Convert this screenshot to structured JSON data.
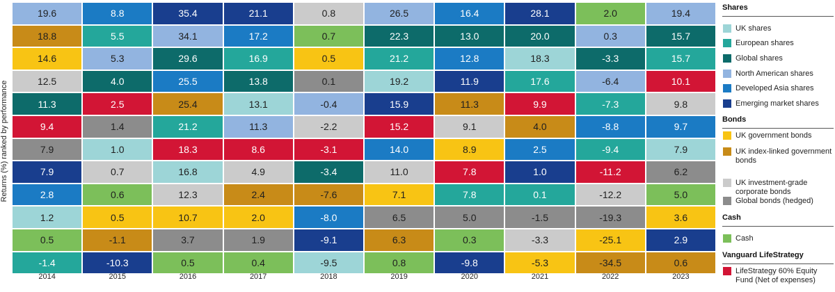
{
  "chart_data": {
    "type": "table",
    "title": "",
    "ylabel": "Returns (%) ranked by performance",
    "years": [
      "2014",
      "2015",
      "2016",
      "2017",
      "2018",
      "2019",
      "2020",
      "2021",
      "2022",
      "2023"
    ],
    "asset_colors": {
      "uk_shares": "#9dd5d7",
      "european_shares": "#24a79b",
      "global_shares": "#0d6b6a",
      "north_american_shares": "#92b4e0",
      "developed_asia_shares": "#1b7bc4",
      "emerging_market_shares": "#193e8e",
      "uk_government_bonds": "#f8c414",
      "uk_index_linked_government_bonds": "#c88b18",
      "uk_investment_grade_corporate_bonds": "#cbcbcb",
      "global_bonds_hedged": "#8c8c8c",
      "cash": "#7cbf5a",
      "lifestrategy": "#d21535"
    },
    "columns": [
      {
        "year": "2014",
        "cells": [
          {
            "asset": "north_american_shares",
            "value": "19.6"
          },
          {
            "asset": "uk_index_linked_government_bonds",
            "value": "18.8"
          },
          {
            "asset": "uk_government_bonds",
            "value": "14.6"
          },
          {
            "asset": "uk_investment_grade_corporate_bonds",
            "value": "12.5"
          },
          {
            "asset": "global_shares",
            "value": "11.3"
          },
          {
            "asset": "lifestrategy",
            "value": "9.4"
          },
          {
            "asset": "global_bonds_hedged",
            "value": "7.9"
          },
          {
            "asset": "emerging_market_shares",
            "value": "7.9"
          },
          {
            "asset": "developed_asia_shares",
            "value": "2.8"
          },
          {
            "asset": "uk_shares",
            "value": "1.2"
          },
          {
            "asset": "cash",
            "value": "0.5"
          },
          {
            "asset": "european_shares",
            "value": "-1.4"
          }
        ]
      },
      {
        "year": "2015",
        "cells": [
          {
            "asset": "developed_asia_shares",
            "value": "8.8"
          },
          {
            "asset": "european_shares",
            "value": "5.5"
          },
          {
            "asset": "north_american_shares",
            "value": "5.3"
          },
          {
            "asset": "global_shares",
            "value": "4.0"
          },
          {
            "asset": "lifestrategy",
            "value": "2.5"
          },
          {
            "asset": "global_bonds_hedged",
            "value": "1.4"
          },
          {
            "asset": "uk_shares",
            "value": "1.0"
          },
          {
            "asset": "uk_investment_grade_corporate_bonds",
            "value": "0.7"
          },
          {
            "asset": "cash",
            "value": "0.6"
          },
          {
            "asset": "uk_government_bonds",
            "value": "0.5"
          },
          {
            "asset": "uk_index_linked_government_bonds",
            "value": "-1.1"
          },
          {
            "asset": "emerging_market_shares",
            "value": "-10.3"
          }
        ]
      },
      {
        "year": "2016",
        "cells": [
          {
            "asset": "emerging_market_shares",
            "value": "35.4"
          },
          {
            "asset": "north_american_shares",
            "value": "34.1"
          },
          {
            "asset": "global_shares",
            "value": "29.6"
          },
          {
            "asset": "developed_asia_shares",
            "value": "25.5"
          },
          {
            "asset": "uk_index_linked_government_bonds",
            "value": "25.4"
          },
          {
            "asset": "european_shares",
            "value": "21.2"
          },
          {
            "asset": "lifestrategy",
            "value": "18.3"
          },
          {
            "asset": "uk_shares",
            "value": "16.8"
          },
          {
            "asset": "uk_investment_grade_corporate_bonds",
            "value": "12.3"
          },
          {
            "asset": "uk_government_bonds",
            "value": "10.7"
          },
          {
            "asset": "global_bonds_hedged",
            "value": "3.7"
          },
          {
            "asset": "cash",
            "value": "0.5"
          }
        ]
      },
      {
        "year": "2017",
        "cells": [
          {
            "asset": "emerging_market_shares",
            "value": "21.1"
          },
          {
            "asset": "developed_asia_shares",
            "value": "17.2"
          },
          {
            "asset": "european_shares",
            "value": "16.9"
          },
          {
            "asset": "global_shares",
            "value": "13.8"
          },
          {
            "asset": "uk_shares",
            "value": "13.1"
          },
          {
            "asset": "north_american_shares",
            "value": "11.3"
          },
          {
            "asset": "lifestrategy",
            "value": "8.6"
          },
          {
            "asset": "uk_investment_grade_corporate_bonds",
            "value": "4.9"
          },
          {
            "asset": "uk_index_linked_government_bonds",
            "value": "2.4"
          },
          {
            "asset": "uk_government_bonds",
            "value": "2.0"
          },
          {
            "asset": "global_bonds_hedged",
            "value": "1.9"
          },
          {
            "asset": "cash",
            "value": "0.4"
          }
        ]
      },
      {
        "year": "2018",
        "cells": [
          {
            "asset": "uk_investment_grade_corporate_bonds",
            "value": "0.8"
          },
          {
            "asset": "cash",
            "value": "0.7"
          },
          {
            "asset": "uk_government_bonds",
            "value": "0.5"
          },
          {
            "asset": "global_bonds_hedged",
            "value": "0.1"
          },
          {
            "asset": "north_american_shares",
            "value": "-0.4"
          },
          {
            "asset": "uk_investment_grade_corporate_bonds",
            "value": "-2.2"
          },
          {
            "asset": "lifestrategy",
            "value": "-3.1"
          },
          {
            "asset": "global_shares",
            "value": "-3.4"
          },
          {
            "asset": "uk_index_linked_government_bonds",
            "value": "-7.6"
          },
          {
            "asset": "developed_asia_shares",
            "value": "-8.0"
          },
          {
            "asset": "emerging_market_shares",
            "value": "-9.1"
          },
          {
            "asset": "uk_shares",
            "value": "-9.5"
          }
        ]
      },
      {
        "year": "2019",
        "cells": [
          {
            "asset": "north_american_shares",
            "value": "26.5"
          },
          {
            "asset": "global_shares",
            "value": "22.3"
          },
          {
            "asset": "european_shares",
            "value": "21.2"
          },
          {
            "asset": "uk_shares",
            "value": "19.2"
          },
          {
            "asset": "emerging_market_shares",
            "value": "15.9"
          },
          {
            "asset": "lifestrategy",
            "value": "15.2"
          },
          {
            "asset": "developed_asia_shares",
            "value": "14.0"
          },
          {
            "asset": "uk_investment_grade_corporate_bonds",
            "value": "11.0"
          },
          {
            "asset": "uk_government_bonds",
            "value": "7.1"
          },
          {
            "asset": "global_bonds_hedged",
            "value": "6.5"
          },
          {
            "asset": "uk_index_linked_government_bonds",
            "value": "6.3"
          },
          {
            "asset": "cash",
            "value": "0.8"
          }
        ]
      },
      {
        "year": "2020",
        "cells": [
          {
            "asset": "developed_asia_shares",
            "value": "16.4"
          },
          {
            "asset": "global_shares",
            "value": "13.0"
          },
          {
            "asset": "developed_asia_shares",
            "value": "12.8"
          },
          {
            "asset": "emerging_market_shares",
            "value": "11.9"
          },
          {
            "asset": "uk_index_linked_government_bonds",
            "value": "11.3"
          },
          {
            "asset": "uk_investment_grade_corporate_bonds",
            "value": "9.1"
          },
          {
            "asset": "uk_government_bonds",
            "value": "8.9"
          },
          {
            "asset": "lifestrategy",
            "value": "7.8"
          },
          {
            "asset": "european_shares",
            "value": "7.8"
          },
          {
            "asset": "global_bonds_hedged",
            "value": "5.0"
          },
          {
            "asset": "cash",
            "value": "0.3"
          },
          {
            "asset": "emerging_market_shares",
            "value": "-9.8"
          }
        ]
      },
      {
        "year": "2021",
        "cells": [
          {
            "asset": "emerging_market_shares",
            "value": "28.1"
          },
          {
            "asset": "global_shares",
            "value": "20.0"
          },
          {
            "asset": "uk_shares",
            "value": "18.3"
          },
          {
            "asset": "european_shares",
            "value": "17.6"
          },
          {
            "asset": "lifestrategy",
            "value": "9.9"
          },
          {
            "asset": "uk_index_linked_government_bonds",
            "value": "4.0"
          },
          {
            "asset": "developed_asia_shares",
            "value": "2.5"
          },
          {
            "asset": "emerging_market_shares",
            "value": "1.0"
          },
          {
            "asset": "european_shares",
            "value": "0.1"
          },
          {
            "asset": "global_bonds_hedged",
            "value": "-1.5"
          },
          {
            "asset": "uk_investment_grade_corporate_bonds",
            "value": "-3.3"
          },
          {
            "asset": "uk_government_bonds",
            "value": "-5.3"
          }
        ]
      },
      {
        "year": "2022",
        "cells": [
          {
            "asset": "cash",
            "value": "2.0"
          },
          {
            "asset": "north_american_shares",
            "value": "0.3"
          },
          {
            "asset": "global_shares",
            "value": "-3.3"
          },
          {
            "asset": "north_american_shares",
            "value": "-6.4"
          },
          {
            "asset": "european_shares",
            "value": "-7.3"
          },
          {
            "asset": "developed_asia_shares",
            "value": "-8.8"
          },
          {
            "asset": "european_shares",
            "value": "-9.4"
          },
          {
            "asset": "lifestrategy",
            "value": "-11.2"
          },
          {
            "asset": "uk_investment_grade_corporate_bonds",
            "value": "-12.2"
          },
          {
            "asset": "global_bonds_hedged",
            "value": "-19.3"
          },
          {
            "asset": "uk_government_bonds",
            "value": "-25.1"
          },
          {
            "asset": "uk_index_linked_government_bonds",
            "value": "-34.5"
          }
        ]
      },
      {
        "year": "2023",
        "cells": [
          {
            "asset": "north_american_shares",
            "value": "19.4"
          },
          {
            "asset": "global_shares",
            "value": "15.7"
          },
          {
            "asset": "european_shares",
            "value": "15.7"
          },
          {
            "asset": "lifestrategy",
            "value": "10.1"
          },
          {
            "asset": "uk_investment_grade_corporate_bonds",
            "value": "9.8"
          },
          {
            "asset": "developed_asia_shares",
            "value": "9.7"
          },
          {
            "asset": "uk_shares",
            "value": "7.9"
          },
          {
            "asset": "global_bonds_hedged",
            "value": "6.2"
          },
          {
            "asset": "cash",
            "value": "5.0"
          },
          {
            "asset": "uk_government_bonds",
            "value": "3.6"
          },
          {
            "asset": "emerging_market_shares",
            "value": "2.9"
          },
          {
            "asset": "uk_index_linked_government_bonds",
            "value": "0.6"
          }
        ]
      }
    ]
  },
  "legend": {
    "groups": [
      {
        "title": "Shares",
        "items": [
          {
            "asset": "uk_shares",
            "label": "UK shares"
          },
          {
            "asset": "european_shares",
            "label": "European shares"
          },
          {
            "asset": "global_shares",
            "label": "Global shares"
          },
          {
            "asset": "north_american_shares",
            "label": "North American shares"
          },
          {
            "asset": "developed_asia_shares",
            "label": "Developed Asia shares"
          },
          {
            "asset": "emerging_market_shares",
            "label": "Emerging market shares"
          }
        ]
      },
      {
        "title": "Bonds",
        "items": [
          {
            "asset": "uk_government_bonds",
            "label": "UK government bonds"
          },
          {
            "asset": "uk_index_linked_government_bonds",
            "label": "UK index-linked government bonds"
          },
          {
            "asset": "uk_investment_grade_corporate_bonds",
            "label": "UK investment-grade corporate bonds"
          },
          {
            "asset": "global_bonds_hedged",
            "label": "Global bonds (hedged)"
          }
        ]
      },
      {
        "title": "Cash",
        "items": [
          {
            "asset": "cash",
            "label": "Cash"
          }
        ]
      },
      {
        "title": "Vanguard LifeStrategy",
        "items": [
          {
            "asset": "lifestrategy",
            "label": "LifeStrategy 60% Equity Fund (Net of expenses)"
          }
        ]
      }
    ]
  }
}
